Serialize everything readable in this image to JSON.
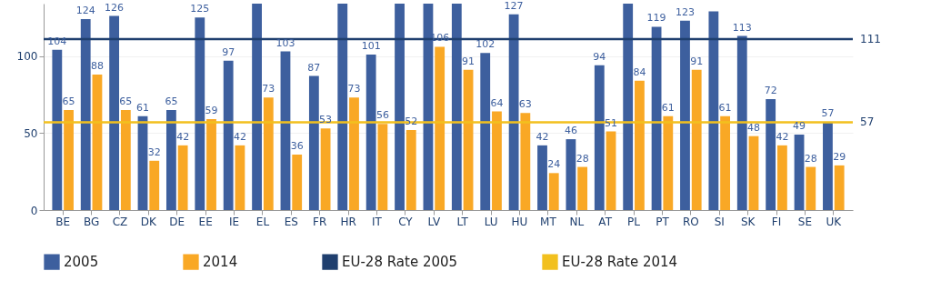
{
  "chart_data": {
    "type": "bar",
    "categories": [
      "BE",
      "BG",
      "CZ",
      "DK",
      "DE",
      "EE",
      "IE",
      "EL",
      "ES",
      "FR",
      "HR",
      "IT",
      "CY",
      "LV",
      "LT",
      "LU",
      "HU",
      "MT",
      "NL",
      "AT",
      "PL",
      "PT",
      "RO",
      "SI",
      "SK",
      "FI",
      "SE",
      "UK"
    ],
    "series": [
      {
        "name": "2005",
        "color": "#3d5f9e",
        "values": [
          104,
          124,
          126,
          61,
          65,
          125,
          97,
          134,
          103,
          87,
          134,
          101,
          134,
          134,
          134,
          102,
          127,
          42,
          46,
          94,
          134,
          119,
          123,
          129,
          113,
          72,
          49,
          57
        ],
        "value_labels": [
          "104",
          "124",
          "126",
          "61",
          "65",
          "125",
          "97",
          null,
          "103",
          "87",
          null,
          "101",
          null,
          null,
          null,
          "102",
          "127",
          "42",
          "46",
          "94",
          null,
          "119",
          "123",
          null,
          "113",
          "72",
          "49",
          "57"
        ]
      },
      {
        "name": "2014",
        "color": "#f9a825",
        "values": [
          65,
          88,
          65,
          32,
          42,
          59,
          42,
          73,
          36,
          53,
          73,
          56,
          52,
          106,
          91,
          64,
          63,
          24,
          28,
          51,
          84,
          61,
          91,
          61,
          48,
          42,
          28,
          29
        ],
        "value_labels": [
          "65",
          "88",
          "65",
          "32",
          "42",
          "59",
          "42",
          "73",
          "36",
          "53",
          "73",
          "56",
          "52",
          "106",
          "91",
          "64",
          "63",
          "24",
          "28",
          "51",
          "84",
          "61",
          "91",
          "61",
          "48",
          "42",
          "28",
          "29"
        ]
      }
    ],
    "ref_lines": [
      {
        "axis": "y",
        "value": 111,
        "label": "EU-28 Rate 2005",
        "color": "#1f3f6e"
      },
      {
        "axis": "y",
        "value": 57,
        "label": "EU-28 Rate 2014",
        "color": "#f2c01e"
      }
    ],
    "annotations": [
      "111",
      "57"
    ],
    "ylim": [
      0,
      134
    ],
    "yticks": [
      0,
      50,
      100
    ],
    "grid": "y",
    "legend": "bottom"
  }
}
